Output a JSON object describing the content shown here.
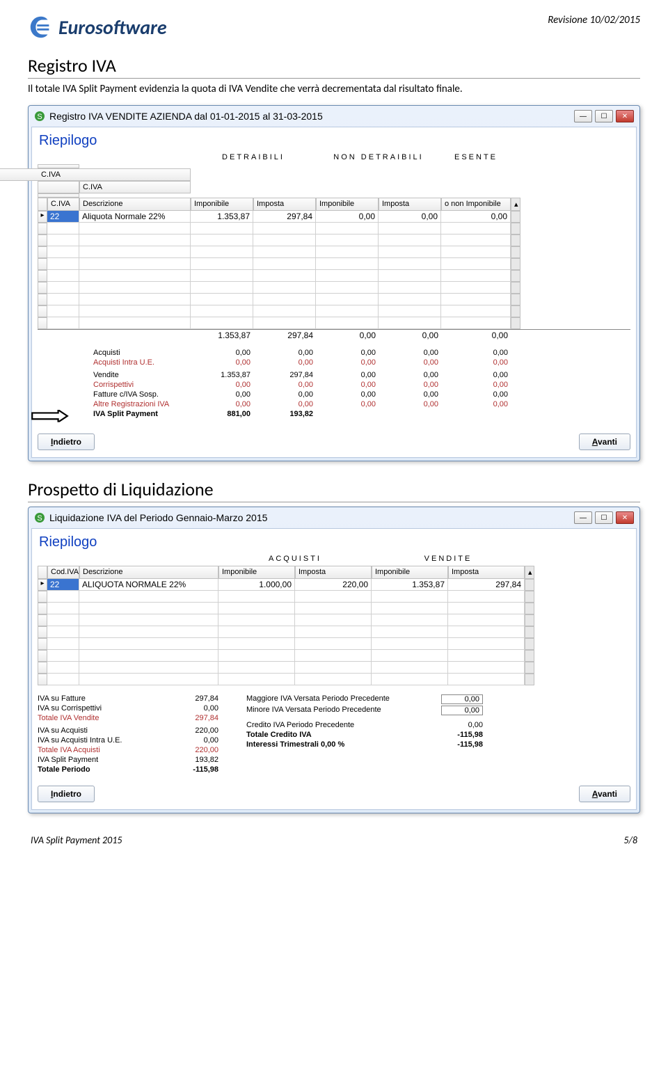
{
  "page": {
    "brand": "Eurosoftware",
    "revision": "Revisione 10/02/2015",
    "footer_left": "IVA Split Payment 2015",
    "footer_right": "5/8"
  },
  "s1": {
    "heading": "Registro IVA",
    "desc": "Il totale IVA Split Payment evidenzia la quota di IVA Vendite che verrà decrementata dal risultato finale.",
    "win_title": "Registro IVA VENDITE AZIENDA dal 01-01-2015 al 31-03-2015",
    "subtitle": "Riepilogo",
    "group_labels": {
      "g1": "DETRAIBILI",
      "g2": "NON DETRAIBILI",
      "g3": "ESENTE"
    },
    "headers": {
      "h0": "",
      "h1": "C.IVA",
      "h2": "Descrizione",
      "h3": "Imponibile",
      "h4": "Imposta",
      "h5": "Imponibile",
      "h6": "Imposta",
      "h7": "o non Imponibile"
    },
    "row1": {
      "civa": "22",
      "desc": "Aliquota Normale 22%",
      "c3": "1.353,87",
      "c4": "297,84",
      "c5": "0,00",
      "c6": "0,00",
      "c7": "0,00"
    },
    "totals": {
      "c3": "1.353,87",
      "c4": "297,84",
      "c5": "0,00",
      "c6": "0,00",
      "c7": "0,00"
    },
    "sum": {
      "r1": {
        "label": "Acquisti",
        "c1": "0,00",
        "c2": "0,00",
        "c3": "0,00",
        "c4": "0,00",
        "c5": "0,00"
      },
      "r2": {
        "label": "Acquisti Intra U.E.",
        "c1": "0,00",
        "c2": "0,00",
        "c3": "0,00",
        "c4": "0,00",
        "c5": "0,00"
      },
      "r3": {
        "label": "Vendite",
        "c1": "1.353,87",
        "c2": "297,84",
        "c3": "0,00",
        "c4": "0,00",
        "c5": "0,00"
      },
      "r4": {
        "label": "Corrispettivi",
        "c1": "0,00",
        "c2": "0,00",
        "c3": "0,00",
        "c4": "0,00",
        "c5": "0,00"
      },
      "r5": {
        "label": "Fatture c/IVA Sosp.",
        "c1": "0,00",
        "c2": "0,00",
        "c3": "0,00",
        "c4": "0,00",
        "c5": "0,00"
      },
      "r6": {
        "label": "Altre Registrazioni IVA",
        "c1": "0,00",
        "c2": "0,00",
        "c3": "0,00",
        "c4": "0,00",
        "c5": "0,00"
      },
      "r7": {
        "label": "IVA Split Payment",
        "c1": "881,00",
        "c2": "193,82"
      }
    },
    "btn_back": "Indietro",
    "btn_fwd": "Avanti"
  },
  "s2": {
    "heading": "Prospetto di Liquidazione",
    "win_title": "Liquidazione IVA del Periodo Gennaio-Marzo 2015",
    "subtitle": "Riepilogo",
    "group_labels": {
      "g1": "ACQUISTI",
      "g2": "VENDITE"
    },
    "headers": {
      "h1": "Cod.IVA",
      "h2": "Descrizione",
      "h3": "Imponibile",
      "h4": "Imposta",
      "h5": "Imponibile",
      "h6": "Imposta"
    },
    "row1": {
      "civa": "22",
      "desc": "ALIQUOTA NORMALE 22%",
      "c3": "1.000,00",
      "c4": "220,00",
      "c5": "1.353,87",
      "c6": "297,84"
    },
    "left": {
      "r1": {
        "label": "IVA su Fatture",
        "val": "297,84"
      },
      "r2": {
        "label": "IVA su Corrispettivi",
        "val": "0,00"
      },
      "r3": {
        "label": "Totale IVA Vendite",
        "val": "297,84"
      },
      "r4": {
        "label": "IVA su Acquisti",
        "val": "220,00"
      },
      "r5": {
        "label": "IVA su Acquisti Intra U.E.",
        "val": "0,00"
      },
      "r6": {
        "label": "Totale IVA Acquisti",
        "val": "220,00"
      },
      "r7": {
        "label": "IVA Split Payment",
        "val": "193,82"
      },
      "r8": {
        "label": "Totale Periodo",
        "val": "-115,98"
      }
    },
    "right": {
      "r1": {
        "label": "Maggiore IVA Versata Periodo Precedente",
        "val": "0,00"
      },
      "r2": {
        "label": "Minore IVA Versata Periodo Precedente",
        "val": "0,00"
      },
      "r3": {
        "label": "Credito IVA Periodo Precedente",
        "val": "0,00"
      },
      "r4": {
        "label": "Totale Credito IVA",
        "val": "-115,98"
      },
      "r5": {
        "label": "Interessi Trimestrali 0,00 %",
        "val": "-115,98"
      }
    },
    "btn_back": "Indietro",
    "btn_fwd": "Avanti"
  },
  "colors": {
    "link_blue": "#1040c0",
    "accent_red": "#b03030",
    "sel_bg": "#3a74d0"
  }
}
